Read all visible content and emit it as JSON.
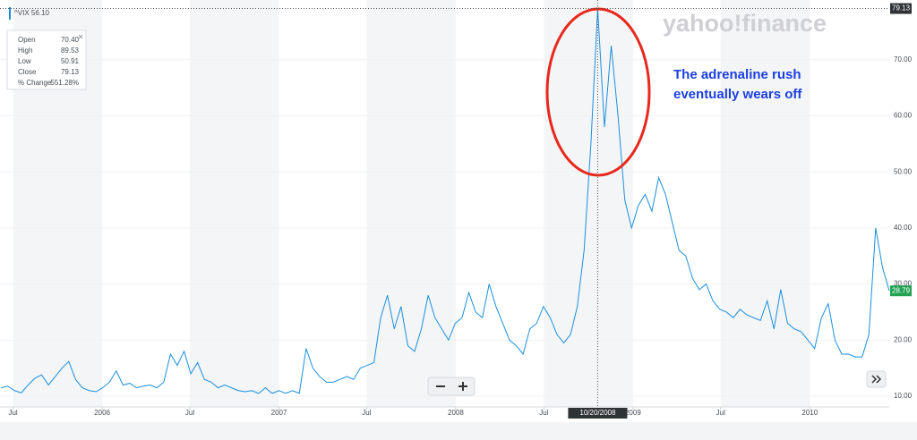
{
  "chart_data": {
    "type": "line",
    "ticker_label": "^VIX 56.10",
    "watermark": "yahoo!finance",
    "annotation": [
      "The adrenaline rush",
      "eventually wears off"
    ],
    "info_box": [
      {
        "label": "Open",
        "value": "70.40"
      },
      {
        "label": "High",
        "value": "89.53"
      },
      {
        "label": "Low",
        "value": "50.91"
      },
      {
        "label": "Close",
        "value": "79.13"
      },
      {
        "label": "% Change",
        "value": "551.28%"
      }
    ],
    "crosshair": {
      "x": "2008-10-20",
      "label": "10/20/2008"
    },
    "color": "#1a8fe0",
    "grid": true,
    "x": [
      "2005-06-06",
      "2005-06-20",
      "2005-07-04",
      "2005-07-18",
      "2005-08-01",
      "2005-08-15",
      "2005-08-29",
      "2005-09-12",
      "2005-09-26",
      "2005-10-10",
      "2005-10-24",
      "2005-11-07",
      "2005-11-21",
      "2005-12-05",
      "2005-12-19",
      "2006-01-02",
      "2006-01-16",
      "2006-01-30",
      "2006-02-13",
      "2006-02-27",
      "2006-03-13",
      "2006-03-27",
      "2006-04-10",
      "2006-04-24",
      "2006-05-08",
      "2006-05-22",
      "2006-06-05",
      "2006-06-19",
      "2006-07-03",
      "2006-07-17",
      "2006-07-31",
      "2006-08-14",
      "2006-08-28",
      "2006-09-11",
      "2006-09-25",
      "2006-10-09",
      "2006-10-23",
      "2006-11-06",
      "2006-11-20",
      "2006-12-04",
      "2006-12-18",
      "2007-01-01",
      "2007-01-15",
      "2007-01-29",
      "2007-02-12",
      "2007-02-26",
      "2007-03-12",
      "2007-03-26",
      "2007-04-09",
      "2007-04-23",
      "2007-05-07",
      "2007-05-21",
      "2007-06-04",
      "2007-06-18",
      "2007-07-02",
      "2007-07-16",
      "2007-07-30",
      "2007-08-13",
      "2007-08-27",
      "2007-09-10",
      "2007-09-24",
      "2007-10-08",
      "2007-10-22",
      "2007-11-05",
      "2007-11-19",
      "2007-12-03",
      "2007-12-17",
      "2007-12-31",
      "2008-01-14",
      "2008-01-28",
      "2008-02-11",
      "2008-02-25",
      "2008-03-10",
      "2008-03-24",
      "2008-04-07",
      "2008-04-21",
      "2008-05-05",
      "2008-05-19",
      "2008-06-02",
      "2008-06-16",
      "2008-06-30",
      "2008-07-14",
      "2008-07-28",
      "2008-08-11",
      "2008-08-25",
      "2008-09-08",
      "2008-09-22",
      "2008-10-06",
      "2008-10-20",
      "2008-11-03",
      "2008-11-17",
      "2008-12-01",
      "2008-12-15",
      "2008-12-29",
      "2009-01-12",
      "2009-01-26",
      "2009-02-09",
      "2009-02-23",
      "2009-03-09",
      "2009-03-23",
      "2009-04-06",
      "2009-04-20",
      "2009-05-04",
      "2009-05-18",
      "2009-06-01",
      "2009-06-15",
      "2009-06-29",
      "2009-07-13",
      "2009-07-27",
      "2009-08-10",
      "2009-08-24",
      "2009-09-07",
      "2009-09-21",
      "2009-10-05",
      "2009-10-19",
      "2009-11-02",
      "2009-11-16",
      "2009-11-30",
      "2009-12-14",
      "2009-12-28",
      "2010-01-11",
      "2010-01-25",
      "2010-02-08",
      "2010-02-22",
      "2010-03-08",
      "2010-03-22",
      "2010-04-05",
      "2010-04-19",
      "2010-05-03",
      "2010-05-17",
      "2010-05-31",
      "2010-06-14"
    ],
    "values": [
      11.5,
      11.8,
      11.0,
      10.6,
      12.0,
      13.2,
      13.8,
      12.0,
      13.5,
      15.0,
      16.2,
      13.0,
      11.5,
      11.0,
      10.8,
      11.5,
      12.5,
      14.5,
      12.0,
      12.3,
      11.5,
      11.8,
      12.0,
      11.5,
      12.5,
      17.5,
      15.5,
      18.0,
      14.0,
      16.0,
      13.0,
      12.5,
      11.5,
      12.0,
      11.5,
      11.0,
      10.8,
      11.0,
      10.5,
      11.5,
      10.5,
      11.0,
      10.5,
      11.0,
      10.5,
      18.5,
      15.0,
      13.5,
      12.5,
      12.5,
      13.0,
      13.5,
      13.0,
      15.0,
      15.5,
      16.0,
      24.0,
      28.0,
      22.0,
      26.0,
      19.0,
      18.0,
      22.0,
      28.0,
      24.0,
      22.0,
      20.0,
      23.0,
      24.0,
      28.5,
      25.0,
      24.0,
      30.0,
      26.0,
      23.0,
      20.0,
      19.0,
      17.5,
      22.0,
      23.0,
      26.0,
      24.0,
      21.0,
      19.5,
      21.0,
      26.0,
      36.0,
      55.0,
      79.13,
      58.0,
      72.5,
      60.0,
      45.0,
      40.0,
      44.0,
      46.0,
      43.0,
      49.0,
      46.0,
      41.0,
      36.0,
      35.0,
      31.0,
      29.0,
      30.0,
      27.0,
      25.5,
      25.0,
      24.0,
      25.5,
      24.5,
      24.0,
      23.5,
      27.0,
      22.0,
      29.0,
      23.0,
      22.0,
      21.5,
      20.0,
      18.5,
      24.0,
      26.5,
      20.0,
      17.5,
      17.5,
      17.0,
      17.0,
      21.0,
      40.0,
      33.0,
      28.79
    ],
    "xlim": [
      "2005-06-04",
      "2010-06-14"
    ],
    "xticks": [
      {
        "value": "2005-07-01",
        "label": "Jul"
      },
      {
        "value": "2006-01-01",
        "label": "2006"
      },
      {
        "value": "2006-07-01",
        "label": "Jul"
      },
      {
        "value": "2007-01-01",
        "label": "2007"
      },
      {
        "value": "2007-07-01",
        "label": "Jul"
      },
      {
        "value": "2008-01-01",
        "label": "2008"
      },
      {
        "value": "2008-07-01",
        "label": "Jul"
      },
      {
        "value": "2009-01-01",
        "label": "2009"
      },
      {
        "value": "2009-07-01",
        "label": "Jul"
      },
      {
        "value": "2010-01-01",
        "label": "2010"
      }
    ],
    "ylim": [
      8.09,
      80.65
    ],
    "yticks": [
      {
        "value": 10,
        "label": "10.00"
      },
      {
        "value": 20,
        "label": "20.00"
      },
      {
        "value": 30,
        "label": "30.00"
      },
      {
        "value": 40,
        "label": "40.00"
      },
      {
        "value": 50,
        "label": "50.00"
      },
      {
        "value": 60,
        "label": "60.00"
      },
      {
        "value": 70,
        "label": "70.00"
      }
    ]
  }
}
